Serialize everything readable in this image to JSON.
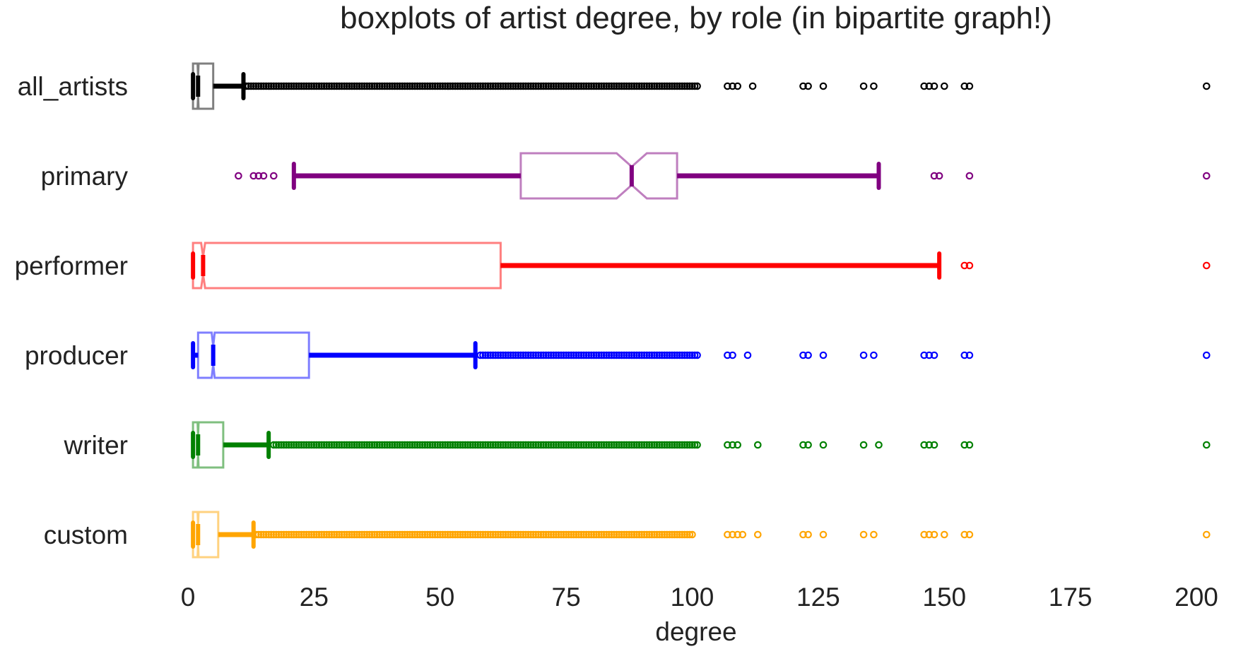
{
  "chart_data": {
    "type": "boxplot",
    "title": "boxplots of artist degree, by role (in bipartite graph!)",
    "xlabel": "degree",
    "ylabel": "",
    "xlim": [
      0,
      200
    ],
    "xticks": [
      0,
      25,
      50,
      75,
      100,
      125,
      150,
      175,
      200
    ],
    "grid": false,
    "notched": true,
    "categories": [
      "all_artists",
      "primary",
      "performer",
      "producer",
      "writer",
      "custom"
    ],
    "series": [
      {
        "name": "all_artists",
        "color": "#000000",
        "whisker_low": 1,
        "q1": 1,
        "median": 2,
        "q3": 5,
        "whisker_high": 11,
        "notch_low": 1.9,
        "notch_high": 2.1,
        "outliers_dense_range": [
          11.5,
          101
        ],
        "outliers": [
          107,
          108,
          109,
          112,
          122,
          123,
          126,
          134,
          136,
          146,
          147,
          148,
          150,
          154,
          155,
          202
        ]
      },
      {
        "name": "primary",
        "color": "#800080",
        "whisker_low": 21,
        "q1": 66,
        "median": 88,
        "q3": 97,
        "whisker_high": 137,
        "notch_low": 85,
        "notch_high": 91,
        "outliers": [
          10,
          13,
          14,
          15,
          17,
          148,
          149,
          155,
          202
        ]
      },
      {
        "name": "performer",
        "color": "#ff0000",
        "whisker_low": 1,
        "q1": 1,
        "median": 3,
        "q3": 62,
        "whisker_high": 149,
        "notch_low": 2.6,
        "notch_high": 3.4,
        "outliers": [
          154,
          155,
          202
        ]
      },
      {
        "name": "producer",
        "color": "#0000ff",
        "whisker_low": 1,
        "q1": 2,
        "median": 5,
        "q3": 24,
        "whisker_high": 57,
        "notch_low": 4.7,
        "notch_high": 5.3,
        "outliers_dense_range": [
          58,
          101
        ],
        "outliers": [
          107,
          108,
          111,
          122,
          123,
          126,
          134,
          136,
          146,
          147,
          148,
          154,
          155,
          202
        ]
      },
      {
        "name": "writer",
        "color": "#008000",
        "whisker_low": 1,
        "q1": 1,
        "median": 2,
        "q3": 7,
        "whisker_high": 16,
        "notch_low": 1.9,
        "notch_high": 2.1,
        "outliers_dense_range": [
          17,
          101
        ],
        "outliers": [
          107,
          108,
          109,
          113,
          122,
          123,
          126,
          134,
          137,
          146,
          147,
          148,
          154,
          155,
          202
        ]
      },
      {
        "name": "custom",
        "color": "#ffa500",
        "whisker_low": 1,
        "q1": 1,
        "median": 2,
        "q3": 6,
        "whisker_high": 13,
        "notch_low": 1.9,
        "notch_high": 2.1,
        "outliers_dense_range": [
          13.5,
          100
        ],
        "outliers": [
          107,
          108,
          109,
          110,
          113,
          122,
          123,
          126,
          134,
          136,
          146,
          147,
          148,
          150,
          154,
          155,
          202
        ]
      }
    ]
  }
}
